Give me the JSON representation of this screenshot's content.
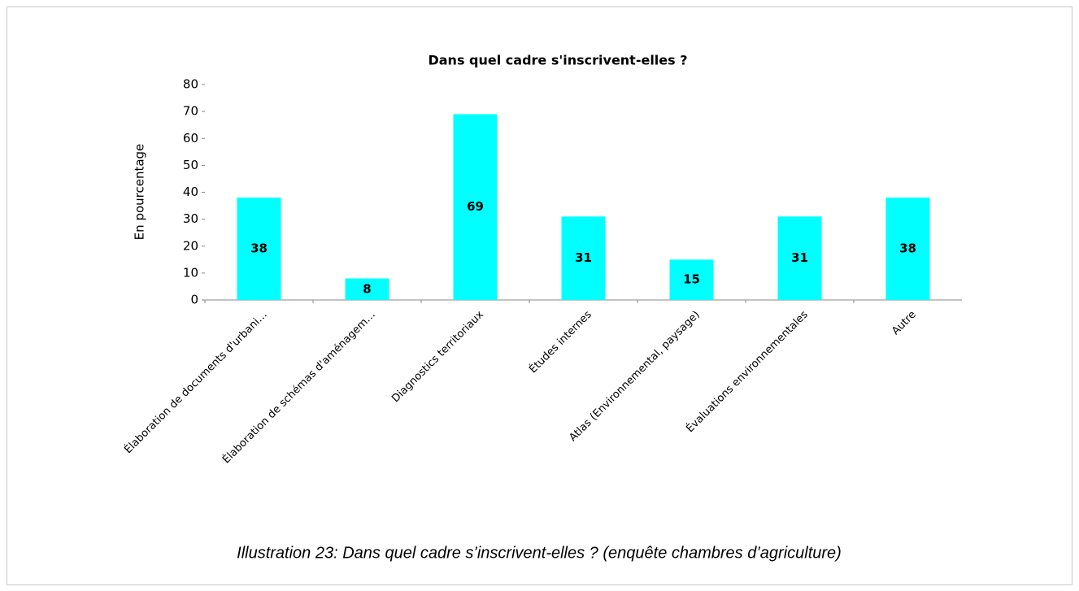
{
  "chart_data": {
    "type": "bar",
    "title": "Dans quel cadre s'inscrivent-elles ?",
    "y_label": "En pourcentage",
    "categories": [
      "Élaboration de documents d'urbani…",
      "Élaboration de schémas d'aménagem…",
      "Diagnostics territoriaux",
      "Études internes",
      "Atlas (Environnemental, paysage)",
      "Évaluations environnementales",
      "Autre"
    ],
    "values": [
      38,
      8,
      69,
      31,
      15,
      31,
      38
    ],
    "color": "#00ffff",
    "ylim": [
      0,
      80
    ],
    "yticks": [
      0,
      10,
      20,
      30,
      40,
      50,
      60,
      70,
      80
    ],
    "grid": false,
    "caption": "Illustration 23: Dans quel cadre s’inscrivent-elles ? (enquête chambres d’agriculture)"
  }
}
